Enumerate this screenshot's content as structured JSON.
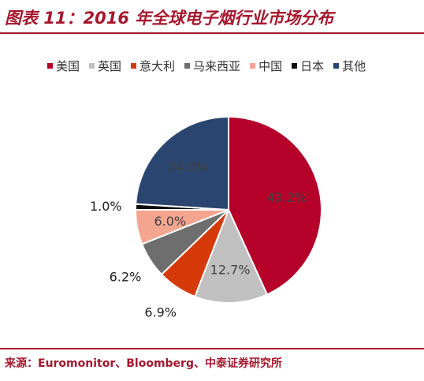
{
  "title": "图表 11：2016 年全球电子烟行业市场分布",
  "source": "来源：Euromonitor、Bloomberg、中泰证券研究所",
  "chart_data": {
    "type": "pie",
    "title": "图表 11：2016 年全球电子烟行业市场分布",
    "legend_position": "top",
    "slices": [
      {
        "name": "美国",
        "value": 43.2,
        "label": "43.2%",
        "color": "#b5002a",
        "label_inside": true
      },
      {
        "name": "英国",
        "value": 12.7,
        "label": "12.7%",
        "color": "#c0c0c0",
        "label_inside": true
      },
      {
        "name": "意大利",
        "value": 6.9,
        "label": "6.9%",
        "color": "#d63a0a",
        "label_inside": false
      },
      {
        "name": "马来西亚",
        "value": 6.2,
        "label": "6.2%",
        "color": "#6e6e6e",
        "label_inside": false
      },
      {
        "name": "中国",
        "value": 6.0,
        "label": "6.0%",
        "color": "#f4a590",
        "label_inside": true
      },
      {
        "name": "日本",
        "value": 1.0,
        "label": "1.0%",
        "color": "#0d0d0d",
        "label_inside": false
      },
      {
        "name": "其他",
        "value": 24.0,
        "label": "24.0%",
        "color": "#2a4670",
        "label_inside": true
      }
    ]
  }
}
